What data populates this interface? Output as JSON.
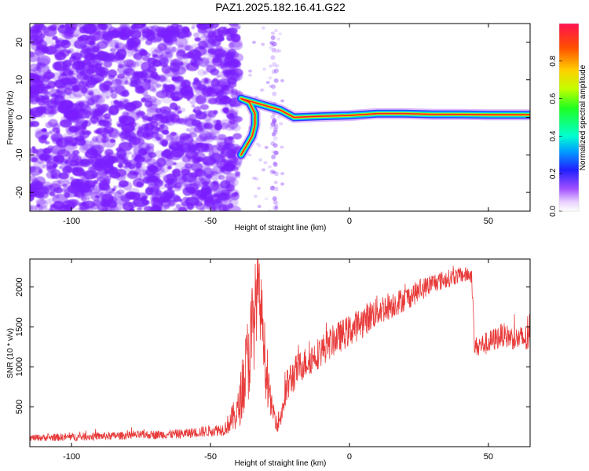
{
  "figure_title": "PAZ1.2025.182.16.41.G22",
  "colors": {
    "snr_line": "#e83a3a",
    "speckle": "#7a1fff",
    "track_core": "#ff2020",
    "track_mid": "#00d0ff",
    "axis": "#000000"
  },
  "chart_data": [
    {
      "type": "heatmap",
      "panel": "top",
      "xlabel": "Height of straight line (km)",
      "ylabel": "Frequency (Hz)",
      "xlim": [
        -115,
        65
      ],
      "ylim": [
        -25,
        25
      ],
      "xticks": [
        -100,
        -50,
        0,
        50
      ],
      "xtick_labels": [
        "-100",
        "-50",
        "0",
        "50"
      ],
      "yticks": [
        -20,
        -10,
        0,
        10,
        20
      ],
      "ytick_labels": [
        "-20",
        "-10",
        "0",
        "10",
        "20"
      ],
      "colorbar": {
        "label": "Normalized spectral amplitude",
        "range": [
          0,
          1
        ],
        "ticks": [
          0.0,
          0.2,
          0.4,
          0.6,
          0.8
        ],
        "tick_labels": [
          "0.0",
          "0.2",
          "0.4",
          "0.6",
          "0.8"
        ],
        "colormap": "gist_rainbow_r"
      },
      "features": {
        "noise_region_x": [
          -115,
          -40
        ],
        "gap_region_x": [
          -36,
          -24
        ],
        "narrow_column_x": -27,
        "track": [
          {
            "x": -39,
            "y": -10
          },
          {
            "x": -37,
            "y": -7.5
          },
          {
            "x": -35,
            "y": -5
          },
          {
            "x": -34,
            "y": -2
          },
          {
            "x": -34,
            "y": 1
          },
          {
            "x": -36,
            "y": 4
          },
          {
            "x": -39,
            "y": 5
          },
          {
            "x": -25,
            "y": 2
          },
          {
            "x": -20,
            "y": 0
          },
          {
            "x": -10,
            "y": 0.3
          },
          {
            "x": 0,
            "y": 0.5
          },
          {
            "x": 10,
            "y": 1
          },
          {
            "x": 20,
            "y": 1
          },
          {
            "x": 30,
            "y": 0.8
          },
          {
            "x": 40,
            "y": 0.8
          },
          {
            "x": 50,
            "y": 0.7
          },
          {
            "x": 65,
            "y": 0.7
          }
        ]
      }
    },
    {
      "type": "line",
      "panel": "bottom",
      "xlabel": "Height of straight line (km)",
      "ylabel": "SNR (10 * v/v)",
      "xlim": [
        -115,
        65
      ],
      "ylim": [
        0,
        2350
      ],
      "xticks": [
        -100,
        -50,
        0,
        50
      ],
      "xtick_labels": [
        "-100",
        "-50",
        "0",
        "50"
      ],
      "yticks": [
        500,
        1000,
        1500,
        2000
      ],
      "ytick_labels": [
        "500",
        "1000",
        "1500",
        "2000"
      ],
      "series": [
        {
          "x": [
            -115,
            -100,
            -80,
            -60,
            -45,
            -40,
            -35,
            -33,
            -31,
            -30,
            -28,
            -26,
            -25,
            -22,
            -18,
            -12,
            -5,
            0,
            10,
            20,
            30,
            40,
            44,
            45,
            50,
            55,
            60,
            65
          ],
          "y": [
            110,
            120,
            140,
            160,
            220,
            450,
            1400,
            2000,
            1500,
            900,
            500,
            300,
            350,
            800,
            1000,
            1150,
            1350,
            1450,
            1700,
            1850,
            2050,
            2150,
            2150,
            1250,
            1300,
            1400,
            1350,
            1350
          ],
          "noise_amplitude": [
            40,
            50,
            50,
            60,
            80,
            250,
            700,
            500,
            400,
            350,
            150,
            120,
            150,
            250,
            200,
            200,
            200,
            200,
            200,
            150,
            130,
            100,
            100,
            120,
            150,
            150,
            150,
            200
          ]
        }
      ]
    }
  ]
}
